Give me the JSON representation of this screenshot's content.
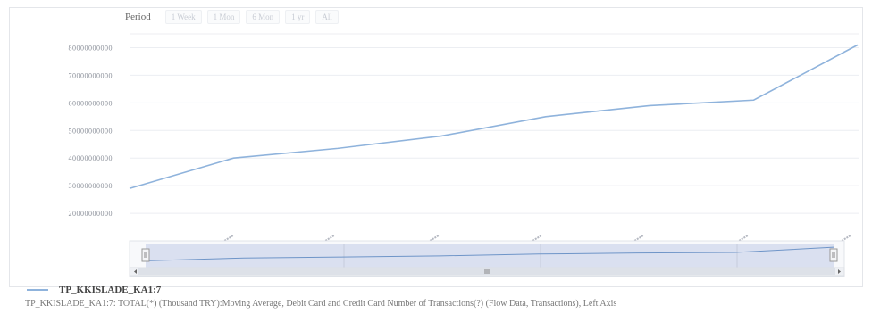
{
  "toolbar": {
    "period_label": "Period",
    "range_buttons": [
      "1 Week",
      "1 Mon",
      "6 Mon",
      "1 yr",
      "All"
    ]
  },
  "chart_data": {
    "type": "line",
    "series": [
      {
        "name": "TP_KKISLADE_KA1:7",
        "color": "#8fb3dc",
        "values": [
          29000000000,
          40000000000,
          43500000000,
          48000000000,
          55000000000,
          59000000000,
          61000000000,
          81000000000
        ]
      }
    ],
    "ylim": [
      10000000000,
      85000000000
    ],
    "yticks": [
      "20000000000",
      "30000000000",
      "40000000000",
      "50000000000",
      "60000000000",
      "70000000000",
      "80000000000"
    ],
    "grid": true
  },
  "legend": {
    "label": "TP_KKISLADE_KA1:7"
  },
  "caption": "TP_KKISLADE_KA1:7: TOTAL(*) (Thousand TRY):Moving Average, Debit Card and Credit Card Number of Transactions(?) (Flow Data, Transactions), Left Axis"
}
